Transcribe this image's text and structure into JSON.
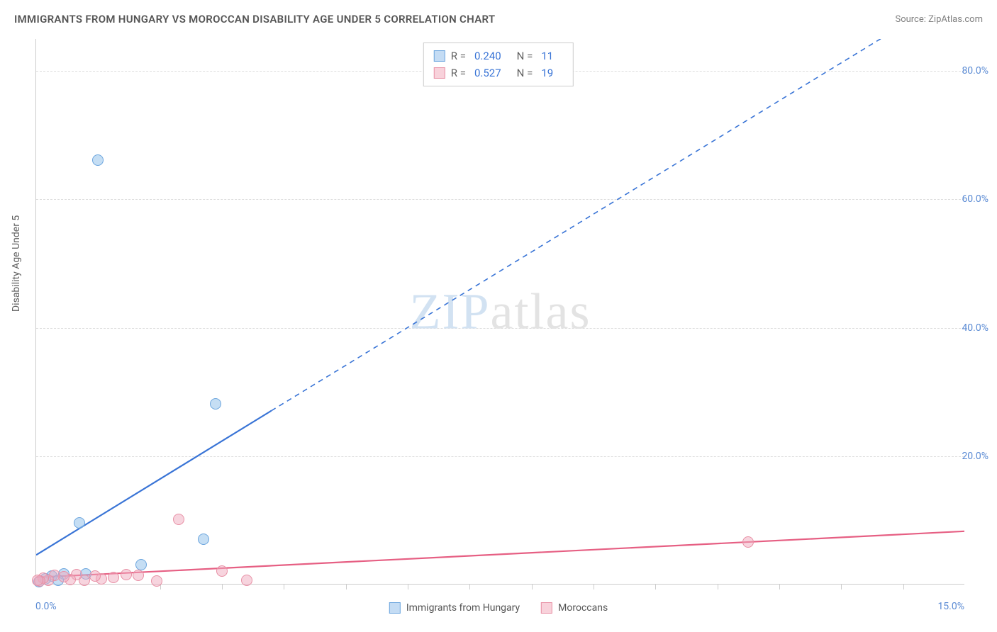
{
  "title": "IMMIGRANTS FROM HUNGARY VS MOROCCAN DISABILITY AGE UNDER 5 CORRELATION CHART",
  "source": "Source: ZipAtlas.com",
  "watermark_a": "ZIP",
  "watermark_b": "atlas",
  "y_axis_label": "Disability Age Under 5",
  "chart": {
    "type": "scatter",
    "xlim": [
      0,
      15
    ],
    "ylim": [
      0,
      85
    ],
    "x_ticks_labeled": [
      {
        "v": 0,
        "t": "0.0%"
      },
      {
        "v": 15,
        "t": "15.0%"
      }
    ],
    "x_ticks_minor": [
      2,
      3,
      4,
      5,
      6,
      7,
      8,
      9,
      10,
      11,
      12,
      13,
      14
    ],
    "y_ticks": [
      {
        "v": 20,
        "t": "20.0%"
      },
      {
        "v": 40,
        "t": "40.0%"
      },
      {
        "v": 60,
        "t": "60.0%"
      },
      {
        "v": 80,
        "t": "80.0%"
      }
    ],
    "grid_color": "#dddddd",
    "axis_color": "#cccccc",
    "background_color": "#ffffff",
    "series": [
      {
        "name": "Immigrants from Hungary",
        "color_fill": "rgba(150,195,235,0.55)",
        "color_stroke": "#6ba5de",
        "line_color": "#3974d6",
        "marker_radius": 8,
        "R": "0.240",
        "N": "11",
        "trend": {
          "x1": 0,
          "y1": 4.5,
          "x2": 3.8,
          "y2": 27,
          "dash_x2": 15,
          "dash_y2": 93
        },
        "points": [
          {
            "x": 1.0,
            "y": 66
          },
          {
            "x": 2.9,
            "y": 28
          },
          {
            "x": 0.7,
            "y": 9.5
          },
          {
            "x": 2.7,
            "y": 7.0
          },
          {
            "x": 1.7,
            "y": 3.0
          },
          {
            "x": 0.8,
            "y": 1.6
          },
          {
            "x": 0.45,
            "y": 1.5
          },
          {
            "x": 0.25,
            "y": 1.2
          },
          {
            "x": 0.15,
            "y": 0.8
          },
          {
            "x": 0.35,
            "y": 0.5
          },
          {
            "x": 0.05,
            "y": 0.3
          }
        ]
      },
      {
        "name": "Moroccans",
        "color_fill": "rgba(240,170,190,0.5)",
        "color_stroke": "#e890a5",
        "line_color": "#e65f83",
        "marker_radius": 8,
        "R": "0.527",
        "N": "19",
        "trend": {
          "x1": 0,
          "y1": 1.0,
          "x2": 15,
          "y2": 8.2
        },
        "points": [
          {
            "x": 2.3,
            "y": 10
          },
          {
            "x": 11.5,
            "y": 6.5
          },
          {
            "x": 3.0,
            "y": 2.0
          },
          {
            "x": 3.4,
            "y": 0.5
          },
          {
            "x": 1.95,
            "y": 0.4
          },
          {
            "x": 1.65,
            "y": 1.3
          },
          {
            "x": 1.45,
            "y": 1.4
          },
          {
            "x": 1.25,
            "y": 1.0
          },
          {
            "x": 1.05,
            "y": 0.8
          },
          {
            "x": 0.95,
            "y": 1.2
          },
          {
            "x": 0.78,
            "y": 0.6
          },
          {
            "x": 0.65,
            "y": 1.4
          },
          {
            "x": 0.55,
            "y": 0.7
          },
          {
            "x": 0.45,
            "y": 1.1
          },
          {
            "x": 0.3,
            "y": 1.3
          },
          {
            "x": 0.2,
            "y": 0.5
          },
          {
            "x": 0.12,
            "y": 0.9
          },
          {
            "x": 0.06,
            "y": 0.4
          },
          {
            "x": 0.02,
            "y": 0.6
          }
        ]
      }
    ]
  },
  "legend_top": {
    "rows": [
      {
        "swatch": "blue",
        "r_label": "R =",
        "r_val": "0.240",
        "n_label": "N =",
        "n_val": "11"
      },
      {
        "swatch": "pink",
        "r_label": "R =",
        "r_val": "0.527",
        "n_label": "N =",
        "n_val": "19"
      }
    ]
  },
  "legend_bottom": {
    "items": [
      {
        "swatch": "blue",
        "label": "Immigrants from Hungary"
      },
      {
        "swatch": "pink",
        "label": "Moroccans"
      }
    ]
  }
}
